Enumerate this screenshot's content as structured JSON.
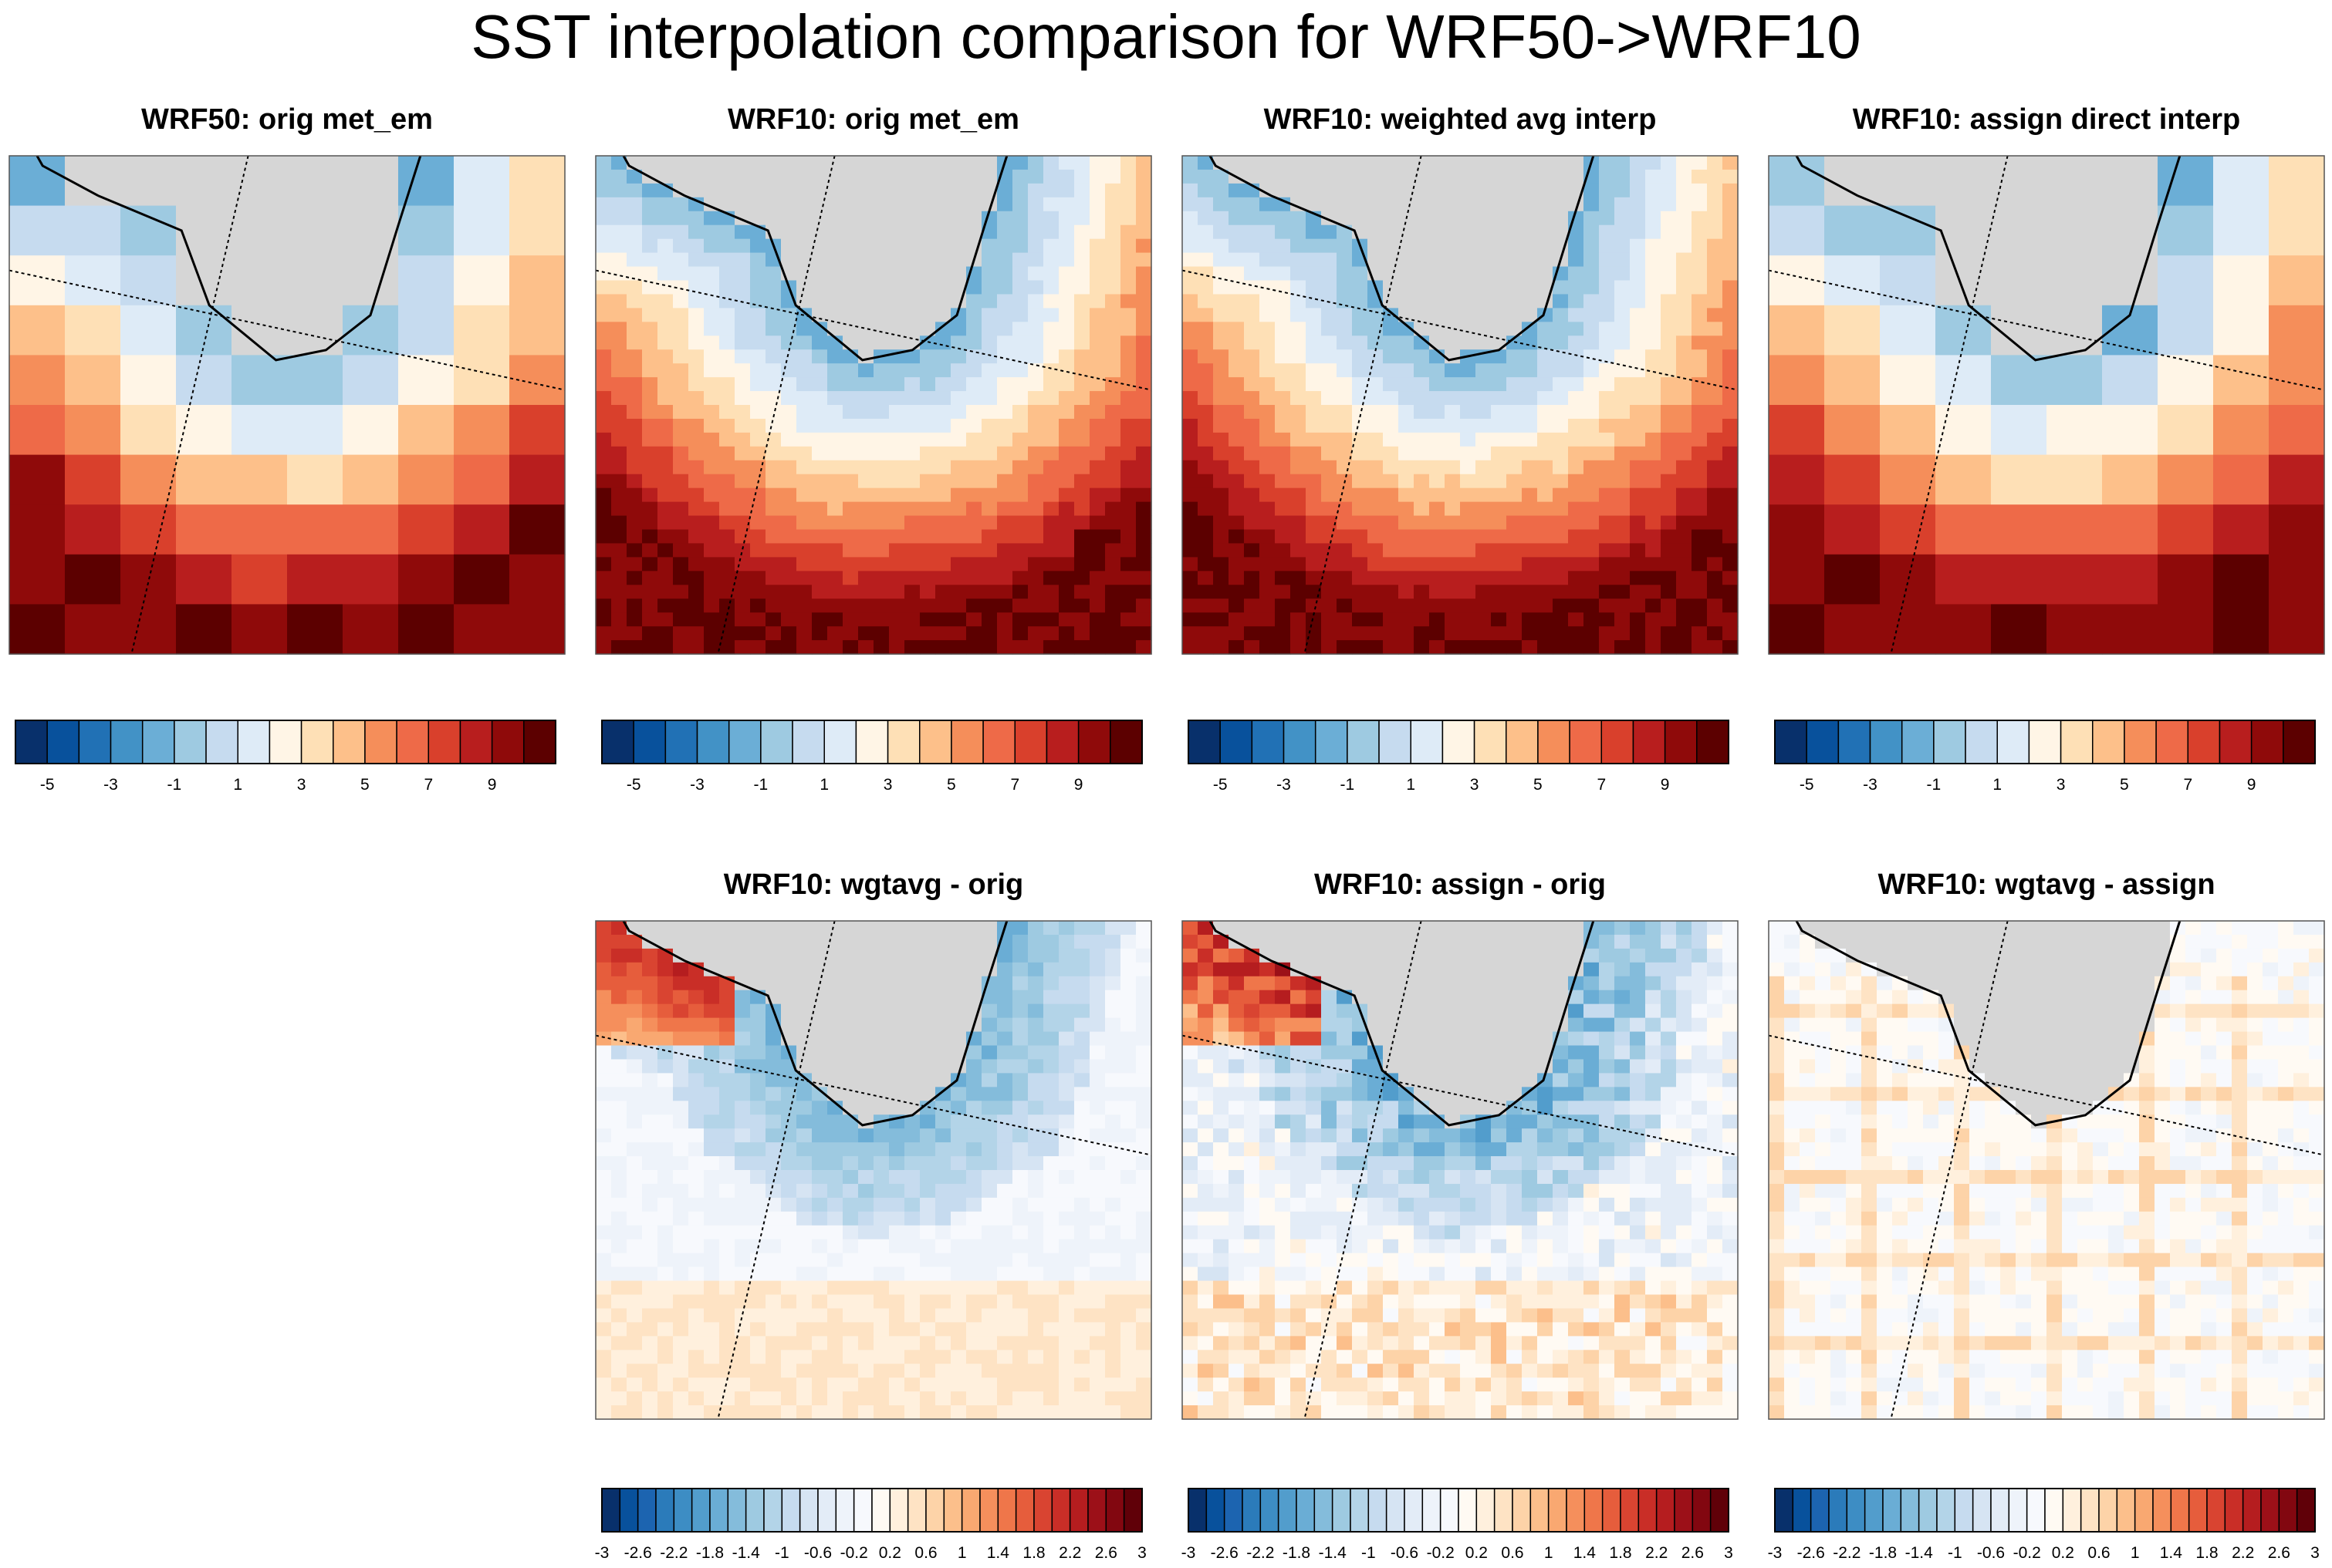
{
  "title": "SST interpolation comparison for WRF50->WRF10",
  "chart_data": [
    {
      "type": "heatmap",
      "title": "WRF50: orig met_em",
      "field": "sst",
      "grid_cell": "coarse",
      "colorbar": {
        "levels": [
          -6,
          -5,
          -4,
          -3,
          -2,
          -1,
          0,
          1,
          2,
          3,
          4,
          5,
          6,
          7,
          8,
          9,
          10,
          11
        ],
        "tick_labels": [
          "-5",
          "-3",
          "-1",
          "1",
          "3",
          "5",
          "7",
          "9"
        ]
      }
    },
    {
      "type": "heatmap",
      "title": "WRF10: orig met_em",
      "field": "sst",
      "grid_cell": "fine",
      "colorbar": {
        "levels": [
          -6,
          -5,
          -4,
          -3,
          -2,
          -1,
          0,
          1,
          2,
          3,
          4,
          5,
          6,
          7,
          8,
          9,
          10,
          11
        ],
        "tick_labels": [
          "-5",
          "-3",
          "-1",
          "1",
          "3",
          "5",
          "7",
          "9"
        ]
      }
    },
    {
      "type": "heatmap",
      "title": "WRF10: weighted avg interp",
      "field": "sst",
      "grid_cell": "fine",
      "colorbar": {
        "levels": [
          -6,
          -5,
          -4,
          -3,
          -2,
          -1,
          0,
          1,
          2,
          3,
          4,
          5,
          6,
          7,
          8,
          9,
          10,
          11
        ],
        "tick_labels": [
          "-5",
          "-3",
          "-1",
          "1",
          "3",
          "5",
          "7",
          "9"
        ]
      }
    },
    {
      "type": "heatmap",
      "title": "WRF10: assign direct interp",
      "field": "sst",
      "grid_cell": "coarse",
      "colorbar": {
        "levels": [
          -6,
          -5,
          -4,
          -3,
          -2,
          -1,
          0,
          1,
          2,
          3,
          4,
          5,
          6,
          7,
          8,
          9,
          10,
          11
        ],
        "tick_labels": [
          "-5",
          "-3",
          "-1",
          "1",
          "3",
          "5",
          "7",
          "9"
        ]
      }
    },
    {
      "type": "heatmap",
      "title": "WRF10: wgtavg - orig",
      "field": "diff",
      "colorbar": {
        "levels": [
          -3,
          -2.8,
          -2.6,
          -2.4,
          -2.2,
          -2,
          -1.8,
          -1.6,
          -1.4,
          -1.2,
          -1,
          -0.8,
          -0.6,
          -0.4,
          -0.2,
          0,
          0.2,
          0.4,
          0.6,
          0.8,
          1,
          1.2,
          1.4,
          1.6,
          1.8,
          2,
          2.2,
          2.4,
          2.6,
          2.8,
          3
        ],
        "tick_labels": [
          "-3",
          "-2.6",
          "-2.2",
          "-1.8",
          "-1.4",
          "-1",
          "-0.6",
          "-0.2",
          "0.2",
          "0.6",
          "1",
          "1.4",
          "1.8",
          "2.2",
          "2.6",
          "3"
        ]
      }
    },
    {
      "type": "heatmap",
      "title": "WRF10: assign - orig",
      "field": "diff",
      "colorbar": {
        "levels": [
          -3,
          -2.8,
          -2.6,
          -2.4,
          -2.2,
          -2,
          -1.8,
          -1.6,
          -1.4,
          -1.2,
          -1,
          -0.8,
          -0.6,
          -0.4,
          -0.2,
          0,
          0.2,
          0.4,
          0.6,
          0.8,
          1,
          1.2,
          1.4,
          1.6,
          1.8,
          2,
          2.2,
          2.4,
          2.6,
          2.8,
          3
        ],
        "tick_labels": [
          "-3",
          "-2.6",
          "-2.2",
          "-1.8",
          "-1.4",
          "-1",
          "-0.6",
          "-0.2",
          "0.2",
          "0.6",
          "1",
          "1.4",
          "1.8",
          "2.2",
          "2.6",
          "3"
        ]
      }
    },
    {
      "type": "heatmap",
      "title": "WRF10: wgtavg - assign",
      "field": "diff",
      "colorbar": {
        "levels": [
          -3,
          -2.8,
          -2.6,
          -2.4,
          -2.2,
          -2,
          -1.8,
          -1.6,
          -1.4,
          -1.2,
          -1,
          -0.8,
          -0.6,
          -0.4,
          -0.2,
          0,
          0.2,
          0.4,
          0.6,
          0.8,
          1,
          1.2,
          1.4,
          1.6,
          1.8,
          2,
          2.2,
          2.4,
          2.6,
          2.8,
          3
        ],
        "tick_labels": [
          "-3",
          "-2.6",
          "-2.2",
          "-1.8",
          "-1.4",
          "-1",
          "-0.6",
          "-0.2",
          "0.2",
          "0.6",
          "1",
          "1.4",
          "1.8",
          "2.2",
          "2.6",
          "3"
        ]
      }
    }
  ],
  "colors": {
    "land": "#d6d6d6",
    "sst_palette": [
      "#08306b",
      "#08519c",
      "#2171b5",
      "#4292c6",
      "#6baed6",
      "#9ecae1",
      "#c6dbef",
      "#deebf7",
      "#fff5e6",
      "#fee0b6",
      "#fdc08a",
      "#f58e5a",
      "#ee6a48",
      "#d9402c",
      "#b81e1e",
      "#8f0a0a",
      "#5c0000"
    ],
    "diff_palette": [
      "#08306b",
      "#08519c",
      "#1c64b0",
      "#2b7bba",
      "#3d8dc4",
      "#529dcc",
      "#6aadd5",
      "#84bcdb",
      "#9ecae1",
      "#b3d4e8",
      "#c6dbef",
      "#d6e4f3",
      "#e3ecf7",
      "#eef3fa",
      "#f7f9fd",
      "#fffaf3",
      "#fff0dd",
      "#fee3c4",
      "#fdd3a8",
      "#fcbf8b",
      "#f9a871",
      "#f58f5c",
      "#ef764a",
      "#e65d3c",
      "#d94431",
      "#c92e27",
      "#b51d1f",
      "#9c1018",
      "#820710",
      "#600008"
    ]
  }
}
